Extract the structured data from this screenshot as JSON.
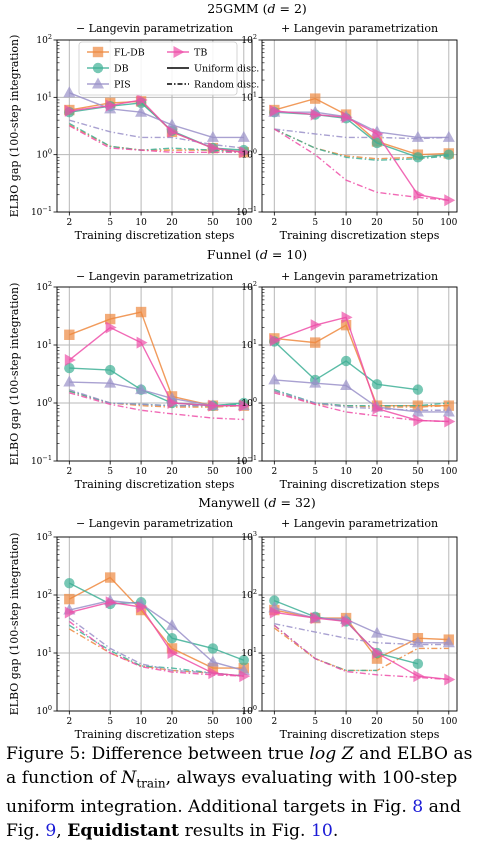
{
  "colors": {
    "FL-DB": "#EE8940",
    "DB": "#3EB096",
    "PIS": "#9A91C9",
    "TB": "#EE4FA8",
    "grid": "#b8b8b8"
  },
  "legend": {
    "items": [
      {
        "key": "FL-DB",
        "label": "FL-DB",
        "marker": "square"
      },
      {
        "key": "TB",
        "label": "TB",
        "marker": "triangle-right"
      },
      {
        "key": "DB",
        "label": "DB",
        "marker": "circle"
      },
      {
        "key": "uniform",
        "label": "Uniform disc.",
        "linestyle": "solid"
      },
      {
        "key": "PIS",
        "label": "PIS",
        "marker": "triangle-up"
      },
      {
        "key": "random",
        "label": "Random disc.",
        "linestyle": "dashdot"
      }
    ]
  },
  "chart_data": {
    "type": "line",
    "xlabel": "Training discretization steps",
    "ylabel": "ELBO gap (100-step integration)",
    "x": [
      2,
      5,
      10,
      20,
      50,
      100
    ],
    "x_tick_labels": [
      "2",
      "5",
      "10",
      "20",
      "50",
      "100"
    ],
    "rows": [
      {
        "title": "25GMM (d = 2)",
        "yscale": "log",
        "ylim_exp": [
          -1,
          2
        ],
        "panels": [
          {
            "title": "− Langevin parametrization",
            "show_legend": true,
            "series": [
              {
                "method": "FL-DB",
                "disc": "uniform",
                "values": [
                  6.0,
                  8.0,
                  8.5,
                  2.5,
                  1.3,
                  1.1
                ]
              },
              {
                "method": "FL-DB",
                "disc": "random",
                "values": [
                  3.3,
                  1.4,
                  1.2,
                  1.2,
                  1.2,
                  1.1
                ]
              },
              {
                "method": "DB",
                "disc": "uniform",
                "values": [
                  5.5,
                  7.0,
                  8.0,
                  2.6,
                  1.3,
                  1.2
                ]
              },
              {
                "method": "DB",
                "disc": "random",
                "values": [
                  3.5,
                  1.4,
                  1.2,
                  1.3,
                  1.2,
                  1.1
                ]
              },
              {
                "method": "PIS",
                "disc": "uniform",
                "values": [
                  12.0,
                  6.3,
                  5.5,
                  3.3,
                  2.0,
                  2.0
                ]
              },
              {
                "method": "PIS",
                "disc": "random",
                "values": [
                  4.0,
                  2.5,
                  2.0,
                  2.0,
                  1.5,
                  1.3
                ]
              },
              {
                "method": "TB",
                "disc": "uniform",
                "values": [
                  5.8,
                  7.2,
                  9.0,
                  2.5,
                  1.3,
                  1.1
                ]
              },
              {
                "method": "TB",
                "disc": "random",
                "values": [
                  3.2,
                  1.3,
                  1.2,
                  1.1,
                  1.1,
                  1.1
                ]
              }
            ]
          },
          {
            "title": "+ Langevin parametrization",
            "show_legend": false,
            "series": [
              {
                "method": "FL-DB",
                "disc": "uniform",
                "values": [
                  6.0,
                  9.5,
                  5.0,
                  1.7,
                  1.0,
                  1.05
                ]
              },
              {
                "method": "FL-DB",
                "disc": "random",
                "values": [
                  2.8,
                  1.3,
                  0.95,
                  0.85,
                  0.9,
                  1.0
                ]
              },
              {
                "method": "DB",
                "disc": "uniform",
                "values": [
                  5.5,
                  5.0,
                  4.3,
                  1.6,
                  0.9,
                  1.0
                ]
              },
              {
                "method": "DB",
                "disc": "random",
                "values": [
                  2.8,
                  1.3,
                  0.9,
                  0.8,
                  0.85,
                  0.95
                ]
              },
              {
                "method": "PIS",
                "disc": "uniform",
                "values": [
                  5.5,
                  5.5,
                  4.6,
                  2.5,
                  2.0,
                  2.0
                ]
              },
              {
                "method": "PIS",
                "disc": "random",
                "values": [
                  2.8,
                  2.3,
                  2.0,
                  2.0,
                  1.9,
                  2.0
                ]
              },
              {
                "method": "TB",
                "disc": "uniform",
                "values": [
                  5.8,
                  5.0,
                  4.5,
                  2.3,
                  0.2,
                  0.16
                ]
              },
              {
                "method": "TB",
                "disc": "random",
                "values": [
                  2.8,
                  1.0,
                  0.36,
                  0.22,
                  0.18,
                  0.16
                ]
              }
            ]
          }
        ]
      },
      {
        "title": "Funnel (d = 10)",
        "yscale": "log",
        "ylim_exp": [
          -1,
          2
        ],
        "panels": [
          {
            "title": "− Langevin parametrization",
            "show_legend": false,
            "series": [
              {
                "method": "FL-DB",
                "disc": "uniform",
                "values": [
                  15.0,
                  28.0,
                  37.0,
                  1.3,
                  0.9,
                  0.9
                ]
              },
              {
                "method": "FL-DB",
                "disc": "random",
                "values": [
                  1.6,
                  1.0,
                  0.9,
                  0.85,
                  0.85,
                  0.9
                ]
              },
              {
                "method": "DB",
                "disc": "uniform",
                "values": [
                  4.0,
                  3.7,
                  1.7,
                  1.0,
                  0.9,
                  1.0
                ]
              },
              {
                "method": "DB",
                "disc": "random",
                "values": [
                  1.6,
                  1.0,
                  0.95,
                  0.9,
                  0.9,
                  0.95
                ]
              },
              {
                "method": "PIS",
                "disc": "uniform",
                "values": [
                  2.3,
                  2.2,
                  1.7,
                  1.2,
                  0.9,
                  0.9
                ]
              },
              {
                "method": "PIS",
                "disc": "random",
                "values": [
                  1.7,
                  1.0,
                  0.95,
                  0.9,
                  0.9,
                  0.9
                ]
              },
              {
                "method": "TB",
                "disc": "uniform",
                "values": [
                  5.5,
                  20.0,
                  11.0,
                  1.0,
                  0.9,
                  0.9
                ]
              },
              {
                "method": "TB",
                "disc": "random",
                "values": [
                  1.5,
                  0.95,
                  0.75,
                  0.65,
                  0.55,
                  0.52
                ]
              }
            ]
          },
          {
            "title": "+ Langevin parametrization",
            "show_legend": false,
            "series": [
              {
                "method": "FL-DB",
                "disc": "uniform",
                "values": [
                  13.0,
                  11.0,
                  22.0,
                  0.9,
                  0.9,
                  0.9
                ]
              },
              {
                "method": "FL-DB",
                "disc": "random",
                "values": [
                  1.6,
                  0.95,
                  0.9,
                  0.85,
                  0.85,
                  0.9
                ]
              },
              {
                "method": "DB",
                "disc": "uniform",
                "values": [
                  11.5,
                  2.5,
                  5.3,
                  2.1,
                  1.7,
                  null
                ]
              },
              {
                "method": "DB",
                "disc": "random",
                "values": [
                  1.7,
                  1.0,
                  0.9,
                  0.9,
                  0.9,
                  1.0
                ]
              },
              {
                "method": "PIS",
                "disc": "uniform",
                "values": [
                  2.5,
                  2.2,
                  2.0,
                  0.85,
                  0.7,
                  0.7
                ]
              },
              {
                "method": "PIS",
                "disc": "random",
                "values": [
                  1.6,
                  1.0,
                  0.85,
                  0.8,
                  0.75,
                  0.75
                ]
              },
              {
                "method": "TB",
                "disc": "uniform",
                "values": [
                  12.0,
                  22.0,
                  30.0,
                  0.8,
                  0.5,
                  0.48
                ]
              },
              {
                "method": "TB",
                "disc": "random",
                "values": [
                  1.5,
                  0.95,
                  0.7,
                  0.6,
                  0.5,
                  0.48
                ]
              }
            ]
          }
        ]
      },
      {
        "title": "Manywell (d = 32)",
        "yscale": "log",
        "ylim_exp": [
          0,
          3
        ],
        "panels": [
          {
            "title": "− Langevin parametrization",
            "show_legend": false,
            "series": [
              {
                "method": "FL-DB",
                "disc": "uniform",
                "values": [
                  85,
                  200,
                  55,
                  12,
                  5.5,
                  5.5
                ]
              },
              {
                "method": "FL-DB",
                "disc": "random",
                "values": [
                  26,
                  10,
                  6.0,
                  5.0,
                  4.5,
                  4.0
                ]
              },
              {
                "method": "DB",
                "disc": "uniform",
                "values": [
                  160,
                  70,
                  75,
                  18,
                  12,
                  7.5
                ]
              },
              {
                "method": "DB",
                "disc": "random",
                "values": [
                  30,
                  11,
                  6.0,
                  5.5,
                  4.5,
                  4.0
                ]
              },
              {
                "method": "PIS",
                "disc": "uniform",
                "values": [
                  55,
                  80,
                  70,
                  30,
                  7.0,
                  5.0
                ]
              },
              {
                "method": "PIS",
                "disc": "random",
                "values": [
                  40,
                  12,
                  6.5,
                  5.0,
                  4.5,
                  4.0
                ]
              },
              {
                "method": "TB",
                "disc": "uniform",
                "values": [
                  50,
                  75,
                  62,
                  10,
                  4.5,
                  4.0
                ]
              },
              {
                "method": "TB",
                "disc": "random",
                "values": [
                  35,
                  10,
                  5.8,
                  4.7,
                  4.2,
                  4.0
                ]
              }
            ]
          },
          {
            "title": "+ Langevin parametrization",
            "show_legend": false,
            "series": [
              {
                "method": "FL-DB",
                "disc": "uniform",
                "values": [
                  55,
                  40,
                  40,
                  8.0,
                  18,
                  17
                ]
              },
              {
                "method": "FL-DB",
                "disc": "random",
                "values": [
                  27,
                  8.0,
                  5.0,
                  5.0,
                  12,
                  12
                ]
              },
              {
                "method": "DB",
                "disc": "uniform",
                "values": [
                  80,
                  42,
                  35,
                  10,
                  6.5,
                  null
                ]
              },
              {
                "method": "DB",
                "disc": "random",
                "values": [
                  30,
                  8.0,
                  5.0,
                  5.0,
                  null,
                  null
                ]
              },
              {
                "method": "PIS",
                "disc": "uniform",
                "values": [
                  60,
                  40,
                  38,
                  22,
                  15,
                  15
                ]
              },
              {
                "method": "PIS",
                "disc": "random",
                "values": [
                  32,
                  23,
                  18,
                  15,
                  14,
                  14
                ]
              },
              {
                "method": "TB",
                "disc": "uniform",
                "values": [
                  50,
                  40,
                  35,
                  10,
                  4.0,
                  3.5
                ]
              },
              {
                "method": "TB",
                "disc": "random",
                "values": [
                  30,
                  8.0,
                  4.8,
                  4.2,
                  3.8,
                  3.5
                ]
              }
            ]
          }
        ]
      }
    ]
  },
  "caption": {
    "prefix": "Figure 5:  Difference between true ",
    "logz": "log Z",
    "mid": " and ELBO as a function of ",
    "ntrain": "N",
    "ntrain_sub": "train",
    "suffix": ", always evaluating with 100-step uniform integration. Additional targets in Fig. ",
    "ref1": "8",
    "and": " and Fig. ",
    "ref2": "9",
    "comma": ", ",
    "bold": "Equidistant",
    "end": " results in Fig. ",
    "ref3": "10",
    "period": "."
  }
}
